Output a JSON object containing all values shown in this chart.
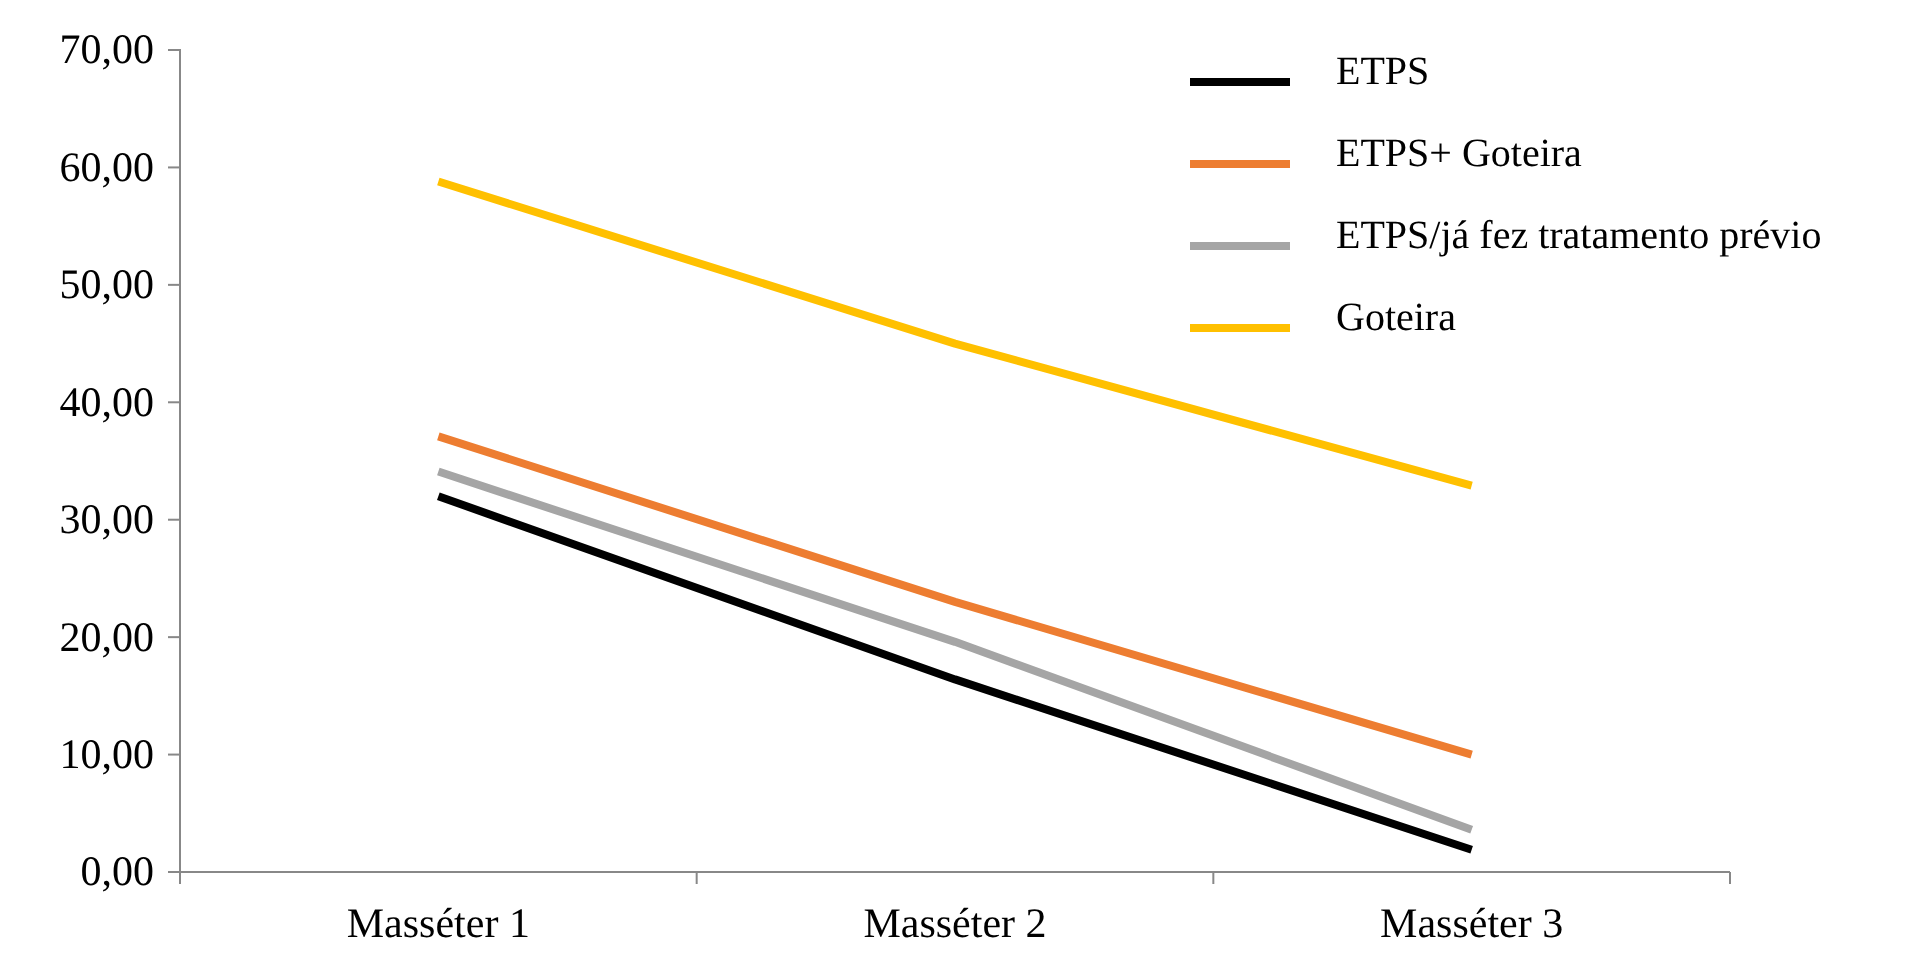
{
  "chart_data": {
    "type": "line",
    "categories": [
      "Masséter 1",
      "Masséter 2",
      "Masséter 3"
    ],
    "series": [
      {
        "name": "ETPS",
        "color": "#000000",
        "values": [
          32.0,
          16.4,
          1.9
        ]
      },
      {
        "name": "ETPS+ Goteira",
        "color": "#ed7d31",
        "values": [
          37.1,
          23.0,
          10.0
        ]
      },
      {
        "name": "ETPS/já fez tratamento prévio",
        "color": "#a5a5a5",
        "values": [
          34.1,
          19.6,
          3.6
        ]
      },
      {
        "name": "Goteira",
        "color": "#ffc000",
        "values": [
          58.8,
          45.0,
          32.9
        ]
      }
    ],
    "ylim": [
      0,
      70
    ],
    "yticks": [
      {
        "value": 0,
        "label": "0,00"
      },
      {
        "value": 10,
        "label": "10,00"
      },
      {
        "value": 20,
        "label": "20,00"
      },
      {
        "value": 30,
        "label": "30,00"
      },
      {
        "value": 40,
        "label": "40,00"
      },
      {
        "value": 50,
        "label": "50,00"
      },
      {
        "value": 60,
        "label": "60,00"
      },
      {
        "value": 70,
        "label": "70,00"
      }
    ],
    "legend": "top right",
    "grid": false,
    "marker": "none",
    "line_style": "solid"
  }
}
